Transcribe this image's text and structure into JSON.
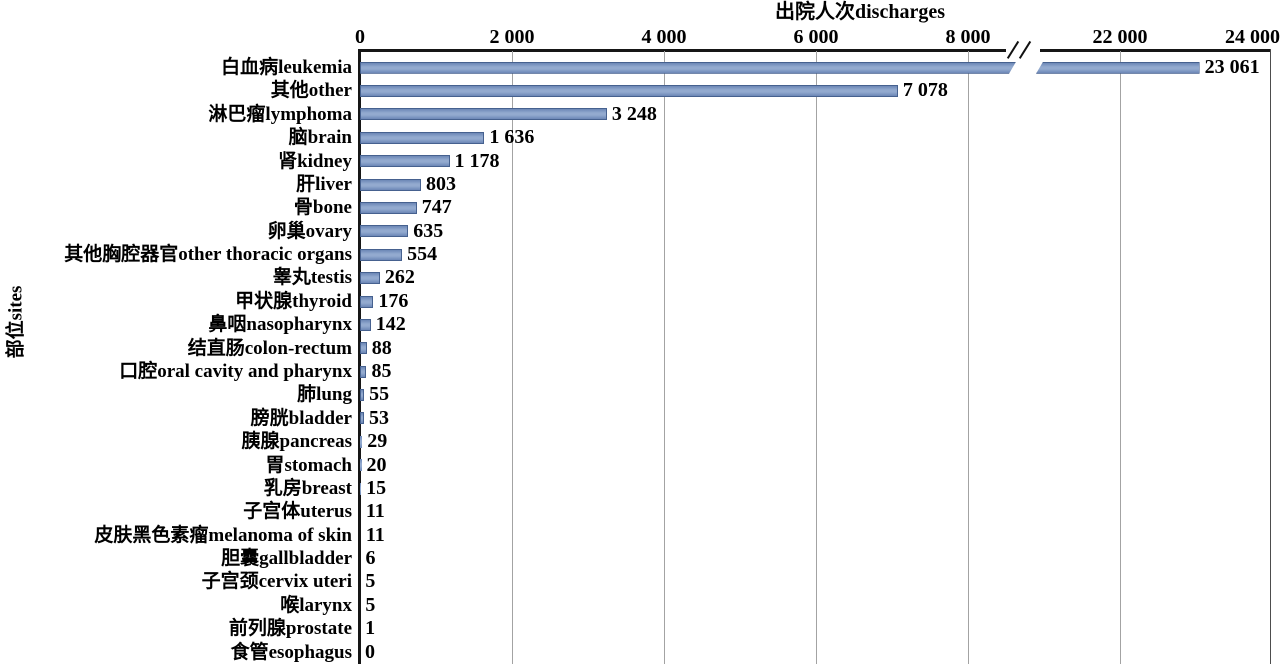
{
  "chart_data": {
    "type": "bar",
    "orientation": "horizontal",
    "title": "",
    "xlabel": "出院人次discharges",
    "ylabel": "部位sites",
    "categories": [
      "白血病leukemia",
      "其他other",
      "淋巴瘤lymphoma",
      "脑brain",
      "肾kidney",
      "肝liver",
      "骨bone",
      "卵巢ovary",
      "其他胸腔器官other thoracic organs",
      "睾丸testis",
      "甲状腺thyroid",
      "鼻咽nasopharynx",
      "结直肠colon-rectum",
      "口腔oral cavity and pharynx",
      "肺lung",
      "膀胱bladder",
      "胰腺pancreas",
      "胃stomach",
      "乳房breast",
      "子宫体uterus",
      "皮肤黑色素瘤melanoma of skin",
      "胆囊gallbladder",
      "子宫颈cervix uteri",
      "喉larynx",
      "前列腺prostate",
      "食管esophagus"
    ],
    "values": [
      23061,
      7078,
      3248,
      1636,
      1178,
      803,
      747,
      635,
      554,
      262,
      176,
      142,
      88,
      85,
      55,
      53,
      29,
      20,
      15,
      11,
      11,
      6,
      5,
      5,
      1,
      0
    ],
    "x_ticks": [
      0,
      2000,
      4000,
      6000,
      8000,
      22000,
      24000
    ],
    "axis_break": {
      "symbol": "//",
      "between": [
        8000,
        22000
      ]
    },
    "xlim_segments": [
      [
        0,
        8900
      ],
      [
        20900,
        24000
      ]
    ],
    "grid": true,
    "value_labels": true,
    "number_group_separator": " ",
    "style": {
      "bar_fill": "#6c87b6",
      "bar_fill_light": "#93aacf",
      "bar_edge": "#46618f",
      "axis_color": "#161616",
      "grid_color": "#a3a3a3",
      "text_color": "#000000",
      "background": "#ffffff"
    }
  }
}
